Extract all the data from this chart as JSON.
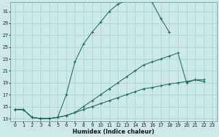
{
  "xlabel": "Humidex (Indice chaleur)",
  "xlim": [
    -0.5,
    23.5
  ],
  "ylim": [
    12.5,
    32.5
  ],
  "yticks": [
    13,
    15,
    17,
    19,
    21,
    23,
    25,
    27,
    29,
    31
  ],
  "xticks": [
    0,
    1,
    2,
    3,
    4,
    5,
    6,
    7,
    8,
    9,
    10,
    11,
    12,
    13,
    14,
    15,
    16,
    17,
    18,
    19,
    20,
    21,
    22,
    23
  ],
  "bg_color": "#cce8e8",
  "grid_color": "#aacece",
  "line_color": "#1a6e5e",
  "line1_x": [
    0,
    1,
    2,
    3,
    4,
    5,
    6,
    7,
    8,
    9,
    10,
    11,
    12,
    13,
    14,
    15,
    16,
    17,
    18
  ],
  "line1_y": [
    14.5,
    14.5,
    13.2,
    13.0,
    13.0,
    13.2,
    17.0,
    22.5,
    25.5,
    27.5,
    29.2,
    31.0,
    32.2,
    32.8,
    33.2,
    33.2,
    32.5,
    29.8,
    27.5
  ],
  "line2_x": [
    0,
    1,
    2,
    3,
    4,
    5,
    6,
    7,
    8,
    9,
    10,
    11,
    12,
    13,
    14,
    15,
    16,
    17,
    18,
    19,
    20,
    21,
    22
  ],
  "line2_y": [
    14.5,
    14.5,
    13.2,
    13.0,
    13.0,
    13.2,
    13.5,
    14.0,
    15.0,
    16.0,
    17.0,
    18.0,
    19.0,
    20.0,
    21.0,
    22.0,
    22.5,
    23.0,
    23.5,
    24.0,
    19.0,
    19.5,
    19.2
  ],
  "line3_x": [
    0,
    1,
    2,
    3,
    4,
    5,
    6,
    7,
    8,
    9,
    10,
    11,
    12,
    13,
    14,
    15,
    16,
    17,
    18,
    19,
    20,
    21,
    22
  ],
  "line3_y": [
    14.5,
    14.5,
    13.2,
    13.0,
    13.0,
    13.2,
    13.5,
    14.0,
    14.5,
    15.0,
    15.5,
    16.0,
    16.5,
    17.0,
    17.5,
    18.0,
    18.2,
    18.5,
    18.8,
    19.0,
    19.2,
    19.5,
    19.5
  ],
  "tick_fontsize": 5,
  "xlabel_fontsize": 6
}
